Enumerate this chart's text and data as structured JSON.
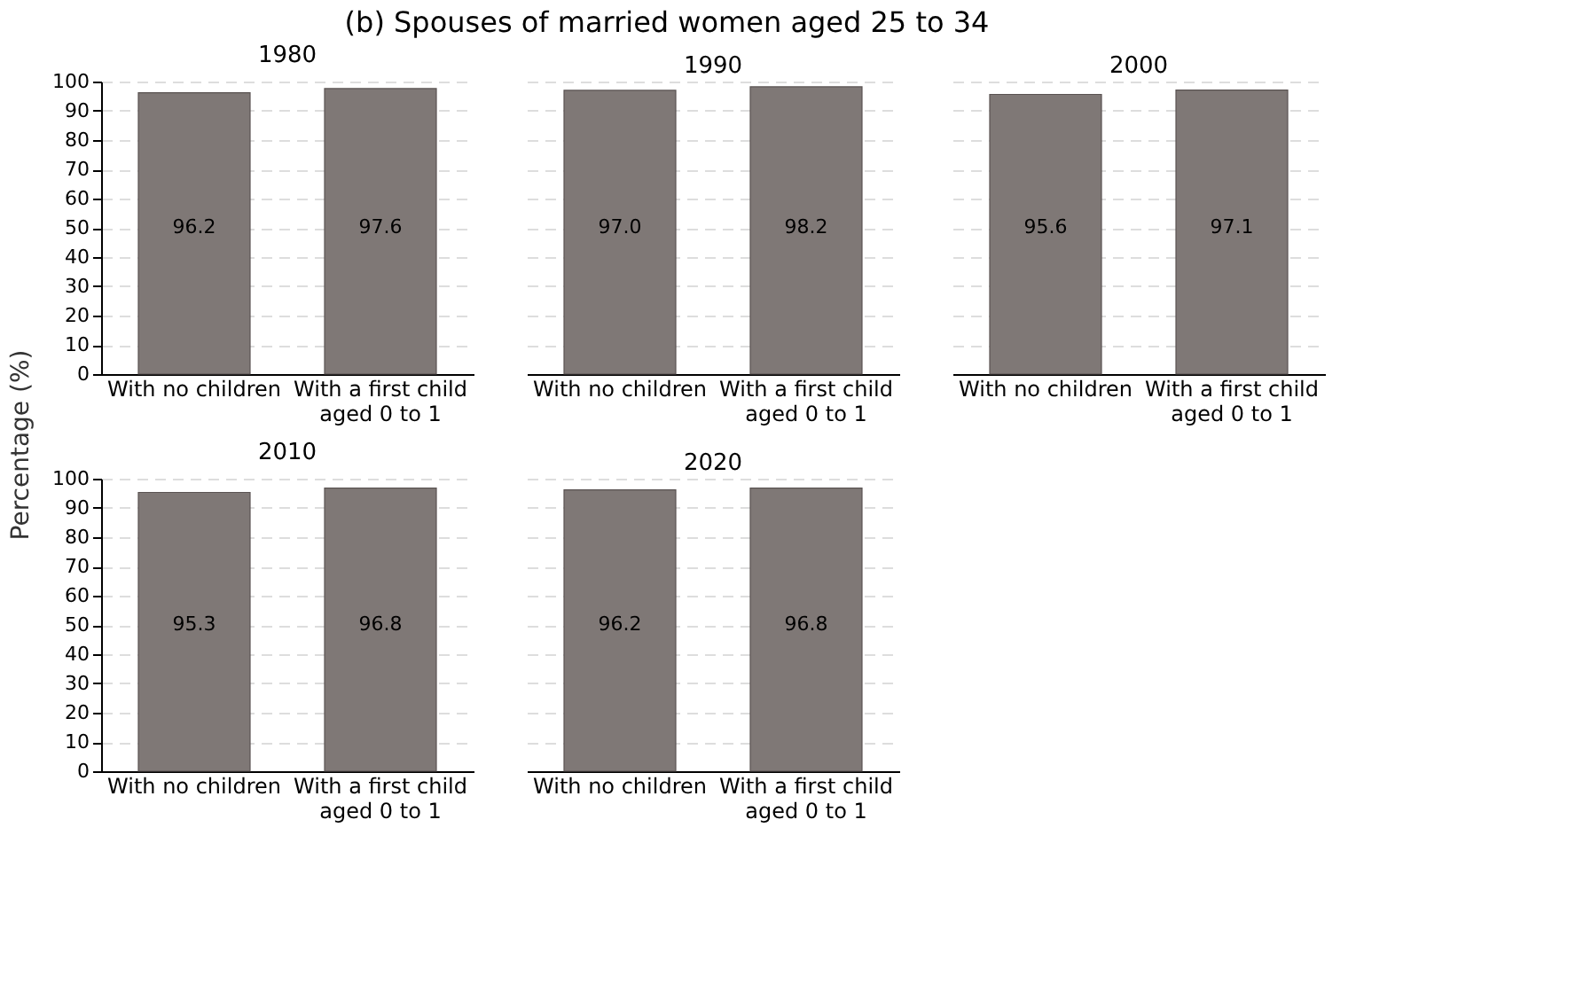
{
  "chart_data": [
    {
      "type": "bar",
      "title": "1980",
      "annotations": [
        "(b) Spouses of married women aged 25 to 34"
      ],
      "ylabel": "Percentage (%)",
      "categories": [
        "With no children",
        "With a first child aged 0 to 1"
      ],
      "values": [
        96.2,
        97.6
      ],
      "value_labels": [
        "96.2",
        "97.6"
      ],
      "color": "#7f7876",
      "ylim": [
        0,
        100
      ],
      "yticks": [
        0,
        10,
        20,
        30,
        40,
        50,
        60,
        70,
        80,
        90,
        100
      ],
      "grid": "y"
    },
    {
      "type": "bar",
      "title": "1990",
      "categories": [
        "With no children",
        "With a first child aged 0 to 1"
      ],
      "values": [
        97.0,
        98.2
      ],
      "value_labels": [
        "97.0",
        "98.2"
      ],
      "color": "#7f7876",
      "ylim": [
        0,
        100
      ],
      "yticks": [
        0,
        10,
        20,
        30,
        40,
        50,
        60,
        70,
        80,
        90,
        100
      ],
      "grid": "y",
      "tick_labels": "x"
    },
    {
      "type": "bar",
      "title": "2000",
      "categories": [
        "With no children",
        "With a first child aged 0 to 1"
      ],
      "values": [
        95.6,
        97.1
      ],
      "value_labels": [
        "95.6",
        "97.1"
      ],
      "color": "#7f7876",
      "ylim": [
        0,
        100
      ],
      "yticks": [
        0,
        10,
        20,
        30,
        40,
        50,
        60,
        70,
        80,
        90,
        100
      ],
      "grid": "y",
      "tick_labels": "x"
    },
    {
      "type": "bar",
      "title": "2010",
      "categories": [
        "With no children",
        "With a first child aged 0 to 1"
      ],
      "values": [
        95.3,
        96.8
      ],
      "value_labels": [
        "95.3",
        "96.8"
      ],
      "color": "#7f7876",
      "ylim": [
        0,
        100
      ],
      "yticks": [
        0,
        10,
        20,
        30,
        40,
        50,
        60,
        70,
        80,
        90,
        100
      ],
      "grid": "y"
    },
    {
      "type": "bar",
      "title": "2020",
      "categories": [
        "With no children",
        "With a first child aged 0 to 1"
      ],
      "values": [
        96.2,
        96.8
      ],
      "value_labels": [
        "96.2",
        "96.8"
      ],
      "color": "#7f7876",
      "ylim": [
        0,
        100
      ],
      "yticks": [
        0,
        10,
        20,
        30,
        40,
        50,
        60,
        70,
        80,
        90,
        100
      ],
      "grid": "y",
      "tick_labels": "x"
    }
  ]
}
